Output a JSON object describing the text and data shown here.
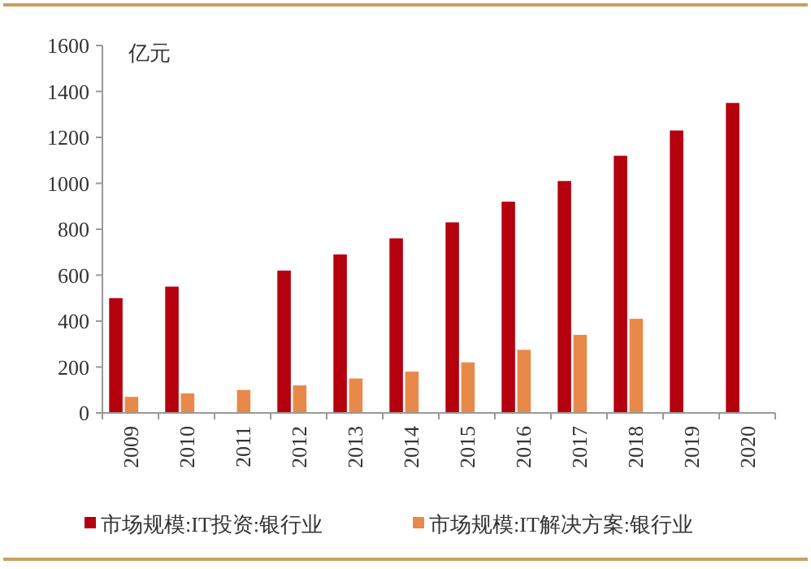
{
  "chart_data": {
    "type": "bar",
    "ylabel": "亿元",
    "categories": [
      "2009",
      "2010",
      "2011",
      "2012",
      "2013",
      "2014",
      "2015",
      "2016",
      "2017",
      "2018",
      "2019",
      "2020"
    ],
    "series": [
      {
        "name": "市场规模:IT投资:银行业",
        "color": "#b5000e",
        "values": [
          500,
          550,
          null,
          620,
          690,
          760,
          830,
          920,
          1010,
          1120,
          1230,
          1350
        ]
      },
      {
        "name": "市场规模:IT解决方案:银行业",
        "color": "#e8894a",
        "values": [
          70,
          85,
          100,
          120,
          150,
          180,
          220,
          275,
          340,
          410,
          null,
          null
        ]
      }
    ],
    "ylim": [
      0,
      1600
    ],
    "yticks": [
      0,
      200,
      400,
      600,
      800,
      1000,
      1200,
      1400,
      1600
    ],
    "grid": false,
    "legend": "bottom"
  }
}
